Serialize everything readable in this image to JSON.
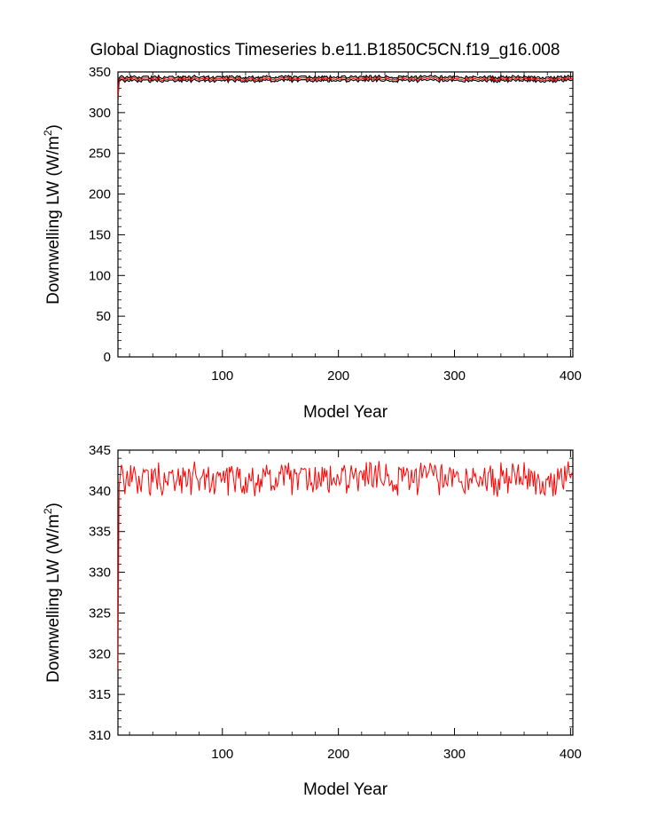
{
  "title": "Global Diagnostics Timeseries b.e11.B1850C5CN.f19_g16.008",
  "colors": {
    "line": "#ff0000",
    "ensemble": "#000000",
    "frame": "#000000"
  },
  "chart_data": [
    {
      "type": "line",
      "title": "",
      "xlabel": "Model Year",
      "ylabel_main": "Downwelling LW (W/m",
      "ylabel_sup": "2",
      "ylabel_close": ")",
      "xlim": [
        10,
        402
      ],
      "ylim": [
        0,
        350
      ],
      "x_ticks": [
        100,
        200,
        300,
        400
      ],
      "y_ticks": [
        0,
        50,
        100,
        150,
        200,
        250,
        300,
        350
      ],
      "grid": false,
      "legend": "none",
      "series": [
        {
          "color": "#ff0000",
          "x_start": 10,
          "x_end": 402,
          "base": 341.5,
          "first_value": 318,
          "variability": 1.1
        }
      ],
      "background_band": {
        "color": "#000000",
        "width": 2.2
      }
    },
    {
      "type": "line",
      "title": "",
      "xlabel": "Model Year",
      "ylabel_main": "Downwelling LW (W/m",
      "ylabel_sup": "2",
      "ylabel_close": ")",
      "xlim": [
        10,
        402
      ],
      "ylim": [
        310,
        345
      ],
      "x_ticks": [
        100,
        200,
        300,
        400
      ],
      "y_ticks": [
        310,
        315,
        320,
        325,
        330,
        335,
        340,
        345
      ],
      "grid": false,
      "legend": "none",
      "series": [
        {
          "color": "#ff0000",
          "x_start": 10,
          "x_end": 402,
          "base": 341.5,
          "first_value": 318,
          "variability": 1.1
        }
      ]
    }
  ]
}
